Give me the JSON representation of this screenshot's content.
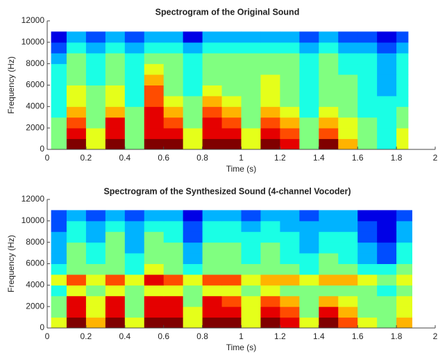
{
  "chart_data": [
    {
      "type": "heatmap",
      "title": "Spectrogram of the Original Sound",
      "xlabel": "Time (s)",
      "ylabel": "Frequency (Hz)",
      "colormap": "jet",
      "zlim": [
        0,
        10
      ],
      "x_bins": [
        0.02,
        0.1,
        0.2,
        0.3,
        0.4,
        0.5,
        0.6,
        0.7,
        0.8,
        0.9,
        1.0,
        1.1,
        1.2,
        1.3,
        1.4,
        1.5,
        1.6,
        1.7,
        1.8,
        1.86
      ],
      "y_bins": [
        0,
        1000,
        2000,
        3000,
        4000,
        5000,
        6000,
        7000,
        8000,
        9000,
        10000,
        11000
      ],
      "z": [
        [
          5,
          10,
          6,
          10,
          5,
          10,
          10,
          6,
          10,
          10,
          6,
          10,
          9,
          5,
          10,
          7,
          5,
          4,
          6
        ],
        [
          5,
          9,
          6,
          9,
          5,
          9,
          9,
          6,
          9,
          9,
          6,
          9,
          8,
          5,
          8,
          6,
          5,
          4,
          6
        ],
        [
          5,
          8,
          5,
          9,
          5,
          9,
          8,
          5,
          9,
          8,
          5,
          8,
          7,
          5,
          7,
          6,
          5,
          4,
          5
        ],
        [
          4,
          7,
          5,
          7,
          5,
          9,
          7,
          5,
          8,
          7,
          5,
          7,
          6,
          4,
          6,
          5,
          4,
          4,
          5
        ],
        [
          4,
          6,
          5,
          6,
          4,
          8,
          6,
          5,
          7,
          6,
          5,
          6,
          5,
          4,
          5,
          5,
          4,
          4,
          4
        ],
        [
          4,
          6,
          5,
          6,
          4,
          8,
          5,
          4,
          6,
          5,
          5,
          6,
          5,
          4,
          5,
          5,
          4,
          3,
          4
        ],
        [
          4,
          5,
          4,
          5,
          4,
          7,
          5,
          4,
          5,
          5,
          5,
          6,
          5,
          4,
          5,
          5,
          4,
          3,
          4
        ],
        [
          4,
          5,
          4,
          5,
          4,
          6,
          5,
          4,
          5,
          5,
          5,
          5,
          5,
          4,
          5,
          4,
          4,
          3,
          4
        ],
        [
          3,
          5,
          4,
          5,
          4,
          5,
          5,
          4,
          5,
          5,
          5,
          5,
          5,
          4,
          5,
          4,
          4,
          3,
          4
        ],
        [
          2,
          4,
          3,
          4,
          3,
          4,
          4,
          3,
          4,
          4,
          4,
          4,
          4,
          3,
          4,
          3,
          3,
          2,
          3
        ],
        [
          1,
          3,
          2,
          3,
          2,
          3,
          3,
          1,
          3,
          3,
          3,
          3,
          3,
          2,
          3,
          2,
          2,
          1,
          2
        ]
      ],
      "xlim": [
        0,
        2
      ],
      "xticks": [
        0,
        0.2,
        0.4,
        0.6,
        0.8,
        1,
        1.2,
        1.4,
        1.6,
        1.8,
        2
      ],
      "ylim": [
        0,
        12000
      ],
      "yticks": [
        0,
        2000,
        4000,
        6000,
        8000,
        10000,
        12000
      ]
    },
    {
      "type": "heatmap",
      "title": "Spectrogram of the Synthesized Sound (4-channel Vocoder)",
      "xlabel": "Time (s)",
      "ylabel": "Frequency (Hz)",
      "colormap": "jet",
      "zlim": [
        0,
        10
      ],
      "x_bins": [
        0.02,
        0.1,
        0.2,
        0.3,
        0.4,
        0.5,
        0.6,
        0.7,
        0.8,
        0.9,
        1.0,
        1.1,
        1.2,
        1.3,
        1.4,
        1.5,
        1.6,
        1.7,
        1.8,
        1.88
      ],
      "y_bins": [
        0,
        1000,
        2000,
        3000,
        4000,
        5000,
        6000,
        7000,
        8000,
        9000,
        10000,
        11000
      ],
      "z": [
        [
          6,
          10,
          7,
          10,
          6,
          10,
          10,
          6,
          10,
          10,
          6,
          10,
          9,
          6,
          10,
          8,
          6,
          5,
          7
        ],
        [
          5,
          9,
          6,
          9,
          5,
          9,
          9,
          6,
          9,
          9,
          6,
          9,
          8,
          5,
          9,
          7,
          5,
          5,
          6
        ],
        [
          5,
          9,
          6,
          9,
          5,
          9,
          9,
          5,
          9,
          8,
          6,
          8,
          7,
          5,
          7,
          6,
          5,
          5,
          6
        ],
        [
          4,
          6,
          5,
          6,
          5,
          6,
          6,
          5,
          6,
          6,
          5,
          6,
          5,
          5,
          5,
          5,
          5,
          4,
          5
        ],
        [
          6,
          8,
          6,
          8,
          6,
          9,
          8,
          6,
          8,
          8,
          6,
          7,
          7,
          6,
          7,
          7,
          6,
          5,
          6
        ],
        [
          4,
          5,
          5,
          5,
          4,
          6,
          5,
          4,
          5,
          5,
          5,
          5,
          5,
          4,
          5,
          5,
          4,
          4,
          5
        ],
        [
          3,
          5,
          4,
          5,
          4,
          5,
          5,
          3,
          5,
          5,
          4,
          5,
          4,
          4,
          5,
          4,
          3,
          2,
          4
        ],
        [
          3,
          5,
          4,
          5,
          3,
          5,
          5,
          3,
          5,
          5,
          4,
          5,
          4,
          3,
          4,
          4,
          3,
          2,
          4
        ],
        [
          3,
          4,
          3,
          5,
          3,
          5,
          4,
          2,
          4,
          4,
          4,
          4,
          4,
          3,
          4,
          4,
          2,
          1,
          3
        ],
        [
          2,
          4,
          3,
          4,
          3,
          4,
          4,
          2,
          4,
          4,
          3,
          4,
          3,
          3,
          3,
          3,
          2,
          1,
          3
        ],
        [
          2,
          3,
          2,
          3,
          2,
          3,
          3,
          1,
          3,
          3,
          2,
          3,
          3,
          2,
          3,
          3,
          1,
          1,
          2
        ]
      ],
      "xlim": [
        0,
        2
      ],
      "xticks": [
        0,
        0.2,
        0.4,
        0.6,
        0.8,
        1,
        1.2,
        1.4,
        1.6,
        1.8,
        2
      ],
      "ylim": [
        0,
        12000
      ],
      "yticks": [
        0,
        2000,
        4000,
        6000,
        8000,
        10000,
        12000
      ]
    }
  ]
}
